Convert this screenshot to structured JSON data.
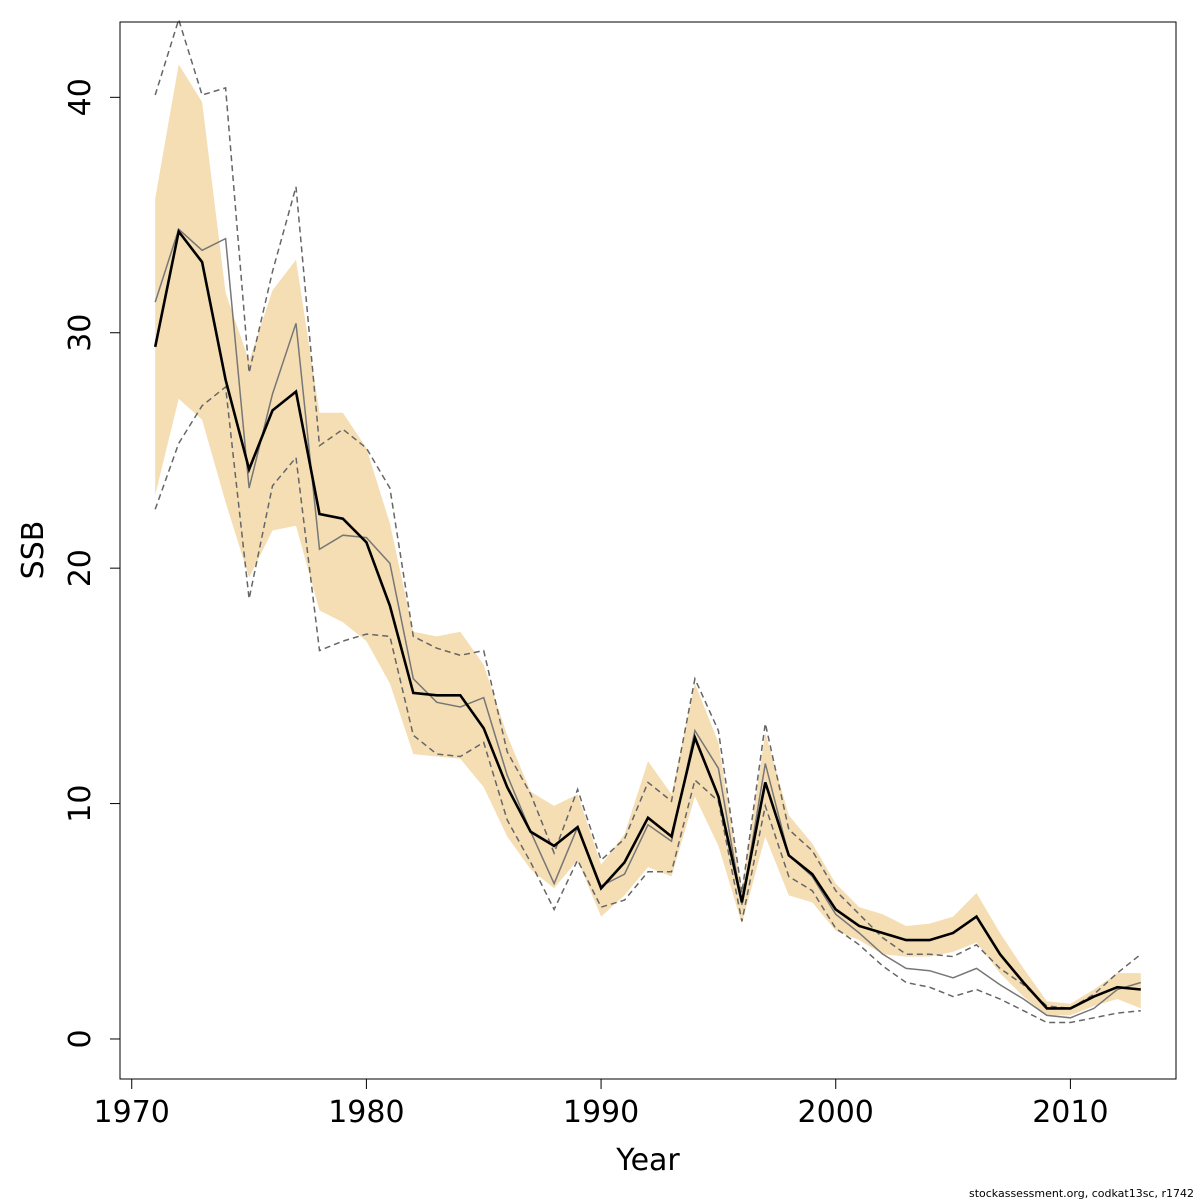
{
  "chart_data": {
    "type": "line",
    "title": "",
    "xlabel": "Year",
    "ylabel": "SSB",
    "xlim": [
      1969.5,
      2014.5
    ],
    "ylim": [
      -1.7,
      43.2
    ],
    "x_ticks": [
      1970,
      1980,
      1990,
      2000,
      2010
    ],
    "y_ticks": [
      0,
      10,
      20,
      30,
      40
    ],
    "grid": false,
    "legend": "none",
    "x": [
      1971,
      1972,
      1973,
      1974,
      1975,
      1976,
      1977,
      1978,
      1979,
      1980,
      1981,
      1982,
      1983,
      1984,
      1985,
      1986,
      1987,
      1988,
      1989,
      1990,
      1991,
      1992,
      1993,
      1994,
      1995,
      1996,
      1997,
      1998,
      1999,
      2000,
      2001,
      2002,
      2003,
      2004,
      2005,
      2006,
      2007,
      2008,
      2009,
      2010,
      2011,
      2012,
      2013
    ],
    "series": [
      {
        "role": "estimate",
        "style": "solid-thick",
        "color": "#000000",
        "values": [
          29.4,
          34.3,
          33.0,
          28.0,
          24.2,
          26.7,
          27.5,
          22.3,
          22.1,
          21.1,
          18.4,
          14.7,
          14.6,
          14.6,
          13.2,
          10.7,
          8.8,
          8.2,
          9.0,
          6.4,
          7.5,
          9.4,
          8.6,
          12.8,
          10.3,
          5.8,
          10.9,
          7.8,
          7.0,
          5.5,
          4.8,
          4.5,
          4.2,
          4.2,
          4.5,
          5.2,
          3.6,
          2.4,
          1.3,
          1.3,
          1.8,
          2.2,
          2.1
        ]
      },
      {
        "role": "alternate-estimate",
        "style": "solid-thin",
        "color": "#777777",
        "values": [
          31.3,
          34.4,
          33.5,
          34.0,
          23.4,
          27.4,
          30.4,
          20.8,
          21.4,
          21.3,
          20.2,
          15.3,
          14.3,
          14.1,
          14.5,
          11.2,
          8.8,
          6.6,
          9.0,
          6.5,
          7.0,
          9.1,
          8.4,
          13.1,
          11.5,
          5.7,
          11.7,
          7.8,
          6.9,
          5.3,
          4.5,
          3.6,
          3.0,
          2.9,
          2.6,
          3.0,
          2.3,
          1.7,
          1.0,
          0.9,
          1.3,
          2.1,
          2.4
        ]
      },
      {
        "role": "alternate-upper",
        "style": "dashed",
        "color": "#666666",
        "values": [
          40.1,
          43.3,
          40.1,
          40.4,
          28.3,
          32.6,
          36.2,
          25.2,
          25.9,
          25.1,
          23.4,
          17.1,
          16.6,
          16.3,
          16.5,
          12.2,
          10.4,
          7.9,
          10.6,
          7.6,
          8.5,
          10.9,
          10.1,
          15.3,
          13.1,
          6.2,
          13.4,
          8.9,
          8.0,
          6.3,
          5.3,
          4.3,
          3.6,
          3.6,
          3.5,
          4.0,
          3.0,
          2.3,
          1.4,
          1.3,
          1.9,
          2.8,
          3.6
        ]
      },
      {
        "role": "alternate-lower",
        "style": "dashed",
        "color": "#666666",
        "values": [
          22.5,
          25.3,
          26.9,
          27.7,
          18.7,
          23.5,
          24.7,
          16.5,
          16.9,
          17.2,
          17.1,
          12.9,
          12.1,
          12.0,
          12.6,
          9.3,
          7.5,
          5.5,
          7.6,
          5.6,
          5.9,
          7.1,
          7.1,
          11.0,
          10.1,
          5.0,
          9.9,
          6.9,
          6.3,
          4.7,
          4.0,
          3.1,
          2.4,
          2.2,
          1.8,
          2.1,
          1.7,
          1.2,
          0.7,
          0.7,
          0.9,
          1.1,
          1.2
        ]
      }
    ],
    "confidence_band": {
      "color": "#f5deb3",
      "upper": [
        35.7,
        41.4,
        39.8,
        31.7,
        28.8,
        31.8,
        33.1,
        26.6,
        26.6,
        25.1,
        21.9,
        17.3,
        17.1,
        17.3,
        15.9,
        12.9,
        10.5,
        9.9,
        10.4,
        7.4,
        8.7,
        11.8,
        10.4,
        15.1,
        12.6,
        6.3,
        13.0,
        9.5,
        8.3,
        6.6,
        5.6,
        5.3,
        4.8,
        4.9,
        5.2,
        6.2,
        4.5,
        3.0,
        1.6,
        1.5,
        2.1,
        2.8,
        2.8
      ],
      "lower": [
        23.1,
        27.2,
        26.3,
        22.8,
        19.6,
        21.6,
        21.8,
        18.2,
        17.7,
        16.9,
        15.1,
        12.1,
        12.0,
        11.9,
        10.7,
        8.6,
        7.2,
        6.4,
        7.6,
        5.2,
        6.1,
        7.3,
        6.9,
        10.3,
        8.2,
        4.9,
        8.6,
        6.1,
        5.8,
        4.6,
        4.2,
        3.6,
        3.5,
        3.5,
        3.7,
        4.1,
        2.8,
        1.8,
        1.0,
        1.0,
        1.4,
        1.7,
        1.3
      ]
    }
  },
  "footer": {
    "text": "stockassessment.org, codkat13sc, r1742"
  }
}
